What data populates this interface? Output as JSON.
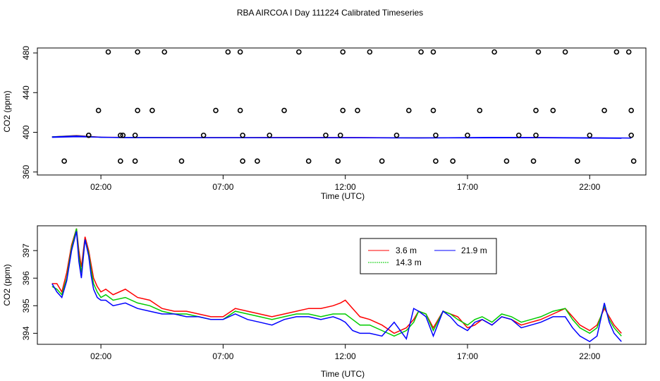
{
  "title": "RBA AIRCOA I  Day 111224  Calibrated Timeseries",
  "chart_data": [
    {
      "type": "scatter+line",
      "xlabel": "Time (UTC)",
      "ylabel": "CO2 (ppm)",
      "xlim": [
        -0.6,
        24.3
      ],
      "ylim": [
        357,
        485
      ],
      "xticks": [
        2,
        7,
        12,
        17,
        22
      ],
      "xtick_labels": [
        "02:00",
        "07:00",
        "12:00",
        "17:00",
        "22:00"
      ],
      "yticks": [
        360,
        400,
        440,
        480
      ],
      "ytick_labels": [
        "360",
        "400",
        "440",
        "480"
      ],
      "series": [
        {
          "name": "3.6 m",
          "color": "#ff0000",
          "x": [
            0.0,
            1.0,
            2.0,
            3.0,
            5.0,
            8.0,
            11.0,
            14.0,
            17.0,
            20.0,
            23.3
          ],
          "y": [
            395.5,
            396.8,
            395.2,
            395.0,
            394.8,
            394.8,
            394.9,
            394.6,
            394.6,
            394.8,
            394.2
          ]
        },
        {
          "name": "14.3 m",
          "color": "#00cc00",
          "x": [
            0.0,
            1.0,
            2.0,
            3.0,
            5.0,
            8.0,
            11.0,
            14.0,
            17.0,
            20.0,
            23.3
          ],
          "y": [
            395.5,
            396.6,
            395.0,
            394.9,
            394.7,
            394.7,
            394.7,
            394.5,
            394.5,
            394.6,
            394.1
          ]
        },
        {
          "name": "21.9 m",
          "color": "#0000ff",
          "x": [
            0.0,
            1.0,
            2.0,
            3.0,
            5.0,
            8.0,
            11.0,
            14.0,
            17.0,
            20.0,
            23.3
          ],
          "y": [
            395.4,
            396.4,
            394.9,
            394.8,
            394.6,
            394.6,
            394.5,
            394.3,
            394.3,
            394.4,
            393.9
          ]
        }
      ],
      "cal_points": {
        "x": [
          0.5,
          1.5,
          1.5,
          1.9,
          2.3,
          2.8,
          2.8,
          2.9,
          3.4,
          3.4,
          3.5,
          3.5,
          4.1,
          4.6,
          5.3,
          6.2,
          6.7,
          7.2,
          7.7,
          7.7,
          7.8,
          7.8,
          8.4,
          8.9,
          9.5,
          10.1,
          10.5,
          11.2,
          11.7,
          11.8,
          11.9,
          11.9,
          12.5,
          13.0,
          13.5,
          14.1,
          14.6,
          15.1,
          15.6,
          15.6,
          15.7,
          15.7,
          16.4,
          17.0,
          17.5,
          18.1,
          18.6,
          19.1,
          19.7,
          19.8,
          19.8,
          19.9,
          20.5,
          21.0,
          21.5,
          22.0,
          22.6,
          23.1,
          23.6,
          23.7,
          23.7,
          23.8
        ],
        "y": [
          371,
          397,
          397,
          422,
          481,
          397,
          371,
          397,
          371,
          397,
          422,
          481,
          422,
          481,
          371,
          397,
          422,
          481,
          481,
          422,
          397,
          371,
          371,
          397,
          422,
          481,
          371,
          397,
          371,
          397,
          422,
          481,
          422,
          481,
          371,
          397,
          422,
          481,
          422,
          481,
          397,
          371,
          371,
          397,
          422,
          481,
          371,
          397,
          371,
          397,
          422,
          481,
          422,
          481,
          371,
          397,
          422,
          481,
          481,
          422,
          397,
          371
        ]
      },
      "mean_line": {
        "x": [
          0.0,
          1.0,
          3.0,
          6.0,
          9.0,
          12.0,
          15.0,
          18.0,
          21.0,
          23.7
        ],
        "y": [
          395,
          395.6,
          394.6,
          394.6,
          394.6,
          394.6,
          394.3,
          394.8,
          394.6,
          394.2
        ]
      }
    },
    {
      "type": "line",
      "xlabel": "Time (UTC)",
      "ylabel": "CO2 (ppm)",
      "xlim": [
        -0.6,
        24.3
      ],
      "ylim": [
        393.6,
        397.9
      ],
      "xticks": [
        2,
        7,
        12,
        17,
        22
      ],
      "xtick_labels": [
        "02:00",
        "07:00",
        "12:00",
        "17:00",
        "22:00"
      ],
      "yticks": [
        394,
        395,
        396,
        397
      ],
      "ytick_labels": [
        "394",
        "395",
        "396",
        "397"
      ],
      "legend": {
        "position": "top-right",
        "entries": [
          "3.6 m",
          "21.9 m",
          "14.3 m"
        ]
      },
      "series": [
        {
          "name": "3.6 m",
          "color": "#ff0000",
          "x": [
            0.0,
            0.2,
            0.4,
            0.6,
            0.8,
            1.0,
            1.1,
            1.2,
            1.35,
            1.5,
            1.6,
            1.7,
            1.85,
            2.0,
            2.2,
            2.5,
            3.0,
            3.5,
            4.0,
            4.5,
            5.0,
            5.5,
            6.0,
            6.5,
            7.0,
            7.5,
            8.0,
            8.5,
            9.0,
            9.5,
            10.0,
            10.5,
            11.0,
            11.5,
            11.8,
            12.0,
            12.3,
            12.6,
            13.0,
            13.5,
            14.0,
            14.5,
            14.8,
            15.0,
            15.3,
            15.6,
            16.0,
            16.3,
            16.6,
            17.0,
            17.3,
            17.6,
            18.0,
            18.4,
            18.8,
            19.2,
            19.6,
            20.0,
            20.5,
            21.0,
            21.3,
            21.6,
            22.0,
            22.3,
            22.6,
            22.8,
            23.0,
            23.3
          ],
          "y": [
            395.8,
            395.8,
            395.5,
            396.2,
            397.2,
            397.8,
            397.0,
            396.4,
            397.5,
            397.0,
            396.5,
            396.0,
            395.7,
            395.5,
            395.6,
            395.4,
            395.6,
            395.3,
            395.2,
            394.9,
            394.8,
            394.8,
            394.7,
            394.6,
            394.6,
            394.9,
            394.8,
            394.7,
            394.6,
            394.7,
            394.8,
            394.9,
            394.9,
            395.0,
            395.1,
            395.2,
            394.9,
            394.6,
            394.5,
            394.3,
            394.0,
            394.2,
            394.5,
            394.8,
            394.7,
            394.2,
            394.8,
            394.7,
            394.6,
            394.2,
            394.3,
            394.5,
            394.3,
            394.6,
            394.5,
            394.3,
            394.4,
            394.5,
            394.7,
            394.9,
            394.6,
            394.3,
            394.1,
            394.3,
            394.9,
            394.6,
            394.3,
            394.0
          ]
        },
        {
          "name": "14.3 m",
          "color": "#00cc00",
          "x": [
            0.0,
            0.2,
            0.4,
            0.6,
            0.8,
            1.0,
            1.1,
            1.2,
            1.35,
            1.5,
            1.6,
            1.7,
            1.85,
            2.0,
            2.2,
            2.5,
            3.0,
            3.5,
            4.0,
            4.5,
            5.0,
            5.5,
            6.0,
            6.5,
            7.0,
            7.5,
            8.0,
            8.5,
            9.0,
            9.5,
            10.0,
            10.5,
            11.0,
            11.5,
            11.8,
            12.0,
            12.3,
            12.6,
            13.0,
            13.5,
            14.0,
            14.5,
            14.8,
            15.0,
            15.3,
            15.6,
            16.0,
            16.3,
            16.6,
            17.0,
            17.3,
            17.6,
            18.0,
            18.4,
            18.8,
            19.2,
            19.6,
            20.0,
            20.5,
            21.0,
            21.3,
            21.6,
            22.0,
            22.3,
            22.6,
            22.8,
            23.0,
            23.3
          ],
          "y": [
            395.7,
            395.6,
            395.4,
            396.0,
            397.1,
            397.8,
            396.8,
            396.2,
            397.4,
            396.9,
            396.3,
            395.8,
            395.5,
            395.3,
            395.4,
            395.2,
            395.3,
            395.1,
            395.0,
            394.8,
            394.7,
            394.7,
            394.6,
            394.5,
            394.5,
            394.8,
            394.7,
            394.6,
            394.5,
            394.6,
            394.7,
            394.7,
            394.6,
            394.7,
            394.7,
            394.7,
            394.5,
            394.3,
            394.3,
            394.1,
            393.9,
            394.1,
            394.4,
            394.8,
            394.7,
            394.1,
            394.8,
            394.7,
            394.5,
            394.3,
            394.5,
            394.6,
            394.4,
            394.7,
            394.6,
            394.4,
            394.5,
            394.6,
            394.8,
            394.9,
            394.5,
            394.2,
            394.0,
            394.2,
            395.0,
            394.5,
            394.2,
            393.9
          ]
        },
        {
          "name": "21.9 m",
          "color": "#0000ff",
          "x": [
            0.0,
            0.2,
            0.4,
            0.6,
            0.8,
            1.0,
            1.1,
            1.2,
            1.35,
            1.5,
            1.6,
            1.7,
            1.85,
            2.0,
            2.2,
            2.5,
            3.0,
            3.5,
            4.0,
            4.5,
            5.0,
            5.5,
            6.0,
            6.5,
            7.0,
            7.5,
            8.0,
            8.5,
            9.0,
            9.5,
            10.0,
            10.5,
            11.0,
            11.5,
            11.8,
            12.0,
            12.3,
            12.6,
            13.0,
            13.5,
            14.0,
            14.5,
            14.8,
            15.0,
            15.3,
            15.6,
            16.0,
            16.3,
            16.6,
            17.0,
            17.3,
            17.6,
            18.0,
            18.4,
            18.8,
            19.2,
            19.6,
            20.0,
            20.5,
            21.0,
            21.3,
            21.6,
            22.0,
            22.3,
            22.6,
            22.8,
            23.0,
            23.3
          ],
          "y": [
            395.8,
            395.5,
            395.3,
            395.9,
            397.0,
            397.7,
            396.6,
            396.0,
            397.4,
            396.8,
            396.1,
            395.6,
            395.3,
            395.2,
            395.2,
            395.0,
            395.1,
            394.9,
            394.8,
            394.7,
            394.7,
            394.6,
            394.6,
            394.5,
            394.5,
            394.7,
            394.5,
            394.4,
            394.3,
            394.5,
            394.6,
            394.6,
            394.5,
            394.6,
            394.5,
            394.4,
            394.1,
            394.0,
            394.0,
            393.9,
            394.4,
            393.8,
            394.9,
            394.8,
            394.6,
            393.9,
            394.8,
            394.6,
            394.3,
            394.1,
            394.4,
            394.5,
            394.3,
            394.6,
            394.5,
            394.2,
            394.3,
            394.4,
            394.6,
            394.6,
            394.2,
            393.9,
            393.7,
            393.9,
            395.1,
            394.4,
            394.0,
            393.7
          ]
        }
      ]
    }
  ]
}
